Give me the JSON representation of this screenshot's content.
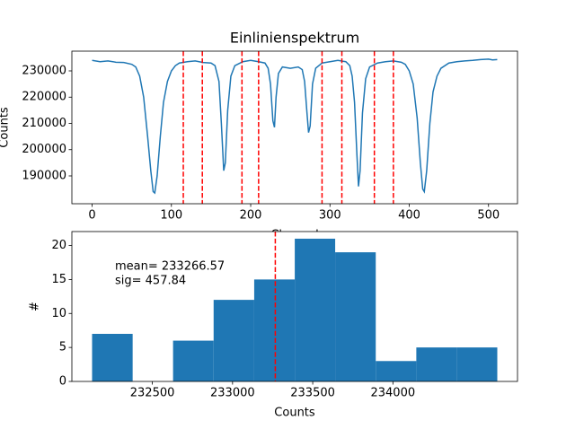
{
  "chart_data": [
    {
      "type": "line",
      "title": "Einlinienspektrum",
      "x_label": "Channel",
      "y_label": "Counts",
      "color": "#1f77b4",
      "x": [
        0,
        10,
        20,
        30,
        40,
        50,
        55,
        60,
        65,
        70,
        74,
        77,
        79,
        82,
        86,
        90,
        95,
        100,
        105,
        110,
        120,
        130,
        140,
        150,
        155,
        160,
        163,
        166,
        168,
        171,
        175,
        180,
        190,
        200,
        210,
        218,
        222,
        225,
        228,
        230,
        232,
        235,
        240,
        250,
        260,
        265,
        268,
        271,
        273,
        275,
        278,
        282,
        290,
        300,
        310,
        320,
        325,
        328,
        331,
        334,
        336,
        338,
        341,
        345,
        350,
        360,
        370,
        380,
        390,
        395,
        400,
        405,
        410,
        414,
        417,
        419,
        422,
        426,
        430,
        435,
        440,
        450,
        460,
        470,
        480,
        490,
        500,
        505,
        511
      ],
      "values": [
        234000,
        233500,
        233800,
        233300,
        233200,
        232500,
        231500,
        228000,
        220000,
        205000,
        192000,
        184000,
        183500,
        190000,
        205000,
        218000,
        226000,
        230000,
        232000,
        233000,
        233500,
        233800,
        233200,
        233000,
        232000,
        226000,
        210000,
        192000,
        195000,
        215000,
        228000,
        232000,
        233500,
        234000,
        233500,
        233000,
        231000,
        225000,
        211000,
        208500,
        220000,
        229000,
        231500,
        231000,
        231500,
        230500,
        226000,
        214000,
        206500,
        209000,
        225000,
        231000,
        233000,
        233500,
        234000,
        233500,
        232000,
        228000,
        218000,
        198000,
        186000,
        192000,
        214000,
        227000,
        231500,
        233000,
        233500,
        233800,
        233300,
        232500,
        230000,
        225000,
        212000,
        195000,
        185000,
        184000,
        192000,
        210000,
        222000,
        228000,
        231000,
        233000,
        233500,
        233800,
        234000,
        234300,
        234500,
        234200,
        234300
      ],
      "vlines": {
        "values": [
          115,
          139,
          189,
          210,
          290,
          315,
          356,
          380
        ],
        "color": "#ff0000"
      },
      "xlim": [
        -25.55,
        536.55
      ],
      "ylim": [
        179400,
        237520
      ],
      "xticks": [
        0,
        100,
        200,
        300,
        400,
        500
      ],
      "yticks": [
        190000,
        200000,
        210000,
        220000,
        230000
      ]
    },
    {
      "type": "histogram",
      "x_label": "Counts",
      "y_label": "#",
      "color": "#1f77b4",
      "bins": [
        232124,
        232377,
        232629,
        232882,
        233135,
        233388,
        233640,
        233893,
        234146,
        234398,
        234651
      ],
      "values": [
        7,
        0,
        6,
        12,
        15,
        21,
        19,
        3,
        5,
        5
      ],
      "vlines": {
        "values": [
          233266.57
        ],
        "color": "#ff0000"
      },
      "annotations": [
        "mean= 233266.57",
        "sig= 457.84"
      ],
      "xlim": [
        231998,
        234777
      ],
      "ylim": [
        0,
        22.05
      ],
      "xticks": [
        232500,
        233000,
        233500,
        234000
      ],
      "yticks": [
        0,
        5,
        10,
        15,
        20
      ]
    }
  ]
}
